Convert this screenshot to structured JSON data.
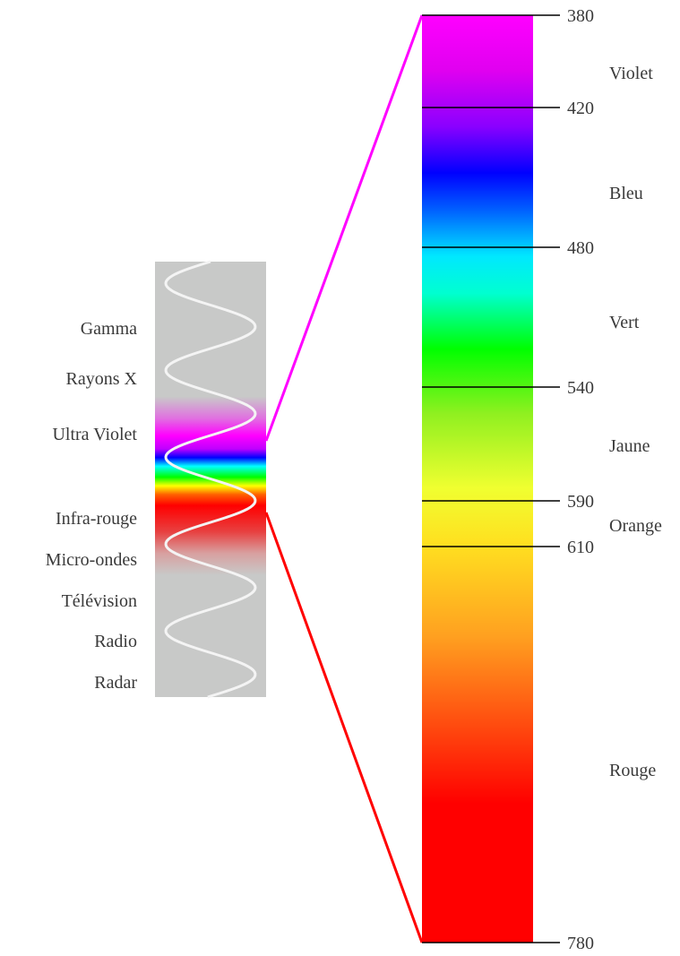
{
  "em_bands": [
    {
      "label": "Gamma"
    },
    {
      "label": "Rayons X"
    },
    {
      "label": "Ultra Violet"
    },
    {
      "label": "Infra-rouge"
    },
    {
      "label": "Micro-ondes"
    },
    {
      "label": "Télévision"
    },
    {
      "label": "Radio"
    },
    {
      "label": "Radar"
    }
  ],
  "wavelength_ticks": [
    "380",
    "420",
    "480",
    "540",
    "590",
    "610",
    "780"
  ],
  "color_names": [
    "Violet",
    "Bleu",
    "Vert",
    "Jaune",
    "Orange",
    "Rouge"
  ],
  "colors": {
    "violet": "#ff00ff",
    "blue": "#0000ff",
    "cyan": "#00ffff",
    "green": "#00ff00",
    "yellow": "#ffff33",
    "orange": "#ff8800",
    "red": "#ff0000",
    "panel_gray": "#c8c9c8",
    "connector_top": "#ff00ff",
    "connector_bottom": "#ff0000"
  }
}
